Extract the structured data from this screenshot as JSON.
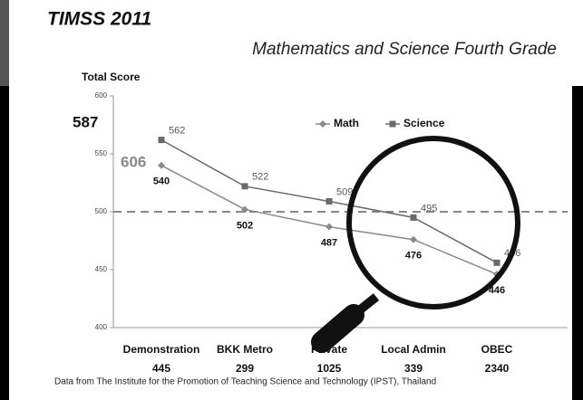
{
  "chart_data": {
    "type": "line",
    "title": "TIMSS 2011",
    "subtitle": "Mathematics and Science Fourth Grade",
    "y_label": "Total Score",
    "categories": [
      "Demonstration",
      "BKK Metro",
      "Private",
      "Local Admin",
      "OBEC"
    ],
    "category_counts": [
      "445",
      "299",
      "1025",
      "339",
      "2340"
    ],
    "series": [
      {
        "name": "Math",
        "color": "#8a8a8a",
        "marker": "diamond",
        "values": [
          540,
          502,
          487,
          476,
          446
        ]
      },
      {
        "name": "Science",
        "color": "#6a6a6a",
        "marker": "square",
        "values": [
          562,
          522,
          509,
          495,
          456
        ]
      }
    ],
    "ylim": [
      400,
      600
    ],
    "yticks": [
      400,
      450,
      500,
      550,
      600
    ],
    "reference_line": 500,
    "annotations": [
      "587",
      "606"
    ],
    "footnote": "Data from The Institute for the Promotion of Teaching Science and Technology (IPST), Thailand"
  }
}
